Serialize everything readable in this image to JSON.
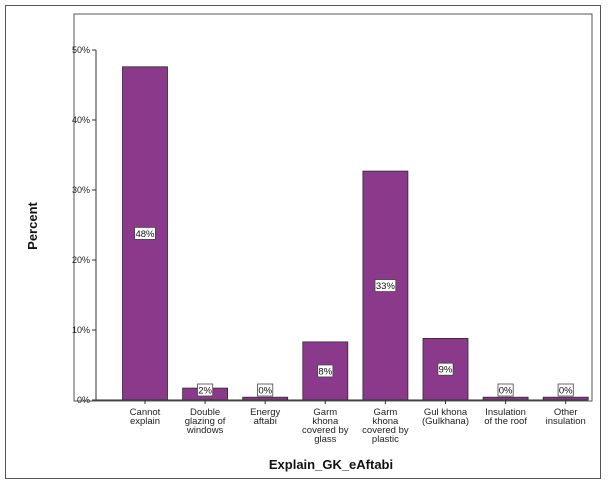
{
  "chart_data": {
    "type": "bar",
    "title": "",
    "xlabel": "Explain_GK_eAftabi",
    "ylabel": "Percent",
    "ylim": [
      0,
      53
    ],
    "yticks": [
      "0%",
      "10%",
      "20%",
      "30%",
      "40%",
      "50%"
    ],
    "categories": [
      [
        "Cannot",
        "explain"
      ],
      [
        "Double",
        "glazing of",
        "windows"
      ],
      [
        "Energy",
        "aftabi"
      ],
      [
        "Garm",
        "khona",
        "covered by",
        "glass"
      ],
      [
        "Garm",
        "khona",
        "covered by",
        "plastic"
      ],
      [
        "Gul khona",
        "(Gulkhana)"
      ],
      [
        "Insulation",
        "of the roof"
      ],
      [
        "Other",
        "insulation"
      ]
    ],
    "values": [
      47.6,
      1.7,
      0.4,
      8.3,
      32.7,
      8.8,
      0.4,
      0.4
    ],
    "data_labels": [
      "48%",
      "2%",
      "0%",
      "8%",
      "33%",
      "9%",
      "0%",
      "0%"
    ],
    "bar_color": "#8b3a8b",
    "plot_background": "#ffffff",
    "grid": false,
    "legend": "none"
  }
}
